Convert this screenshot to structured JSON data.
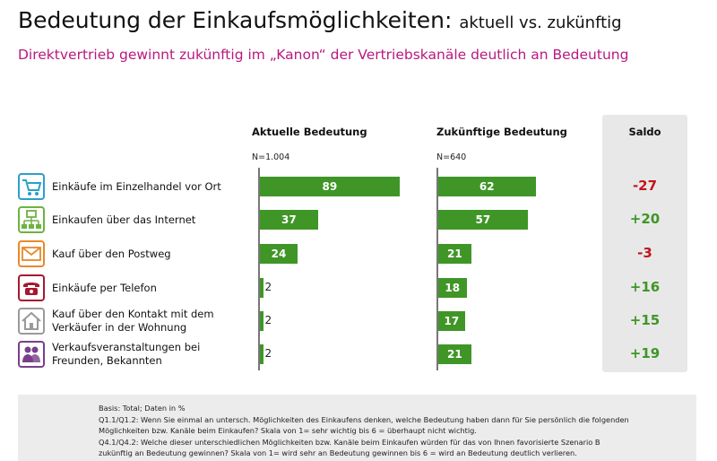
{
  "header": {
    "title": "Bedeutung der Einkaufsmöglichkeiten:",
    "title_suffix": "aktuell vs. zukünftig",
    "subtitle": "Direktvertrieb gewinnt zukünftig im „Kanon“ der Vertriebskanäle deutlich an Bedeutung"
  },
  "columns": {
    "current": "Aktuelle Bedeutung",
    "current_n": "N=1.004",
    "future": "Zukünftige Bedeutung",
    "future_n": "N=640",
    "saldo": "Saldo"
  },
  "chart_data": {
    "type": "bar",
    "categories": [
      "Einkäufe im Einzelhandel vor Ort",
      "Einkaufen über das Internet",
      "Kauf über den Postweg",
      "Einkäufe per Telefon",
      "Kauf über den Kontakt mit dem Verkäufer in der Wohnung",
      "Verkaufsveranstaltungen bei Freunden, Bekannten"
    ],
    "series": [
      {
        "name": "Aktuelle Bedeutung",
        "values": [
          89,
          37,
          24,
          2,
          2,
          2
        ]
      },
      {
        "name": "Zukünftige Bedeutung",
        "values": [
          62,
          57,
          21,
          18,
          17,
          21
        ]
      }
    ],
    "saldo": [
      "-27",
      "+20",
      "-3",
      "+16",
      "+15",
      "+19"
    ],
    "bar_color": "#3f9627",
    "saldo_colors": {
      "negative": "#c0161e",
      "positive": "#3f9627"
    }
  },
  "rows": [
    {
      "label_lines": [
        "Einkäufe im Einzelhandel vor Ort"
      ],
      "icon": "shopping-cart-icon",
      "icon_color": "#2aa0c8"
    },
    {
      "label_lines": [
        "Einkaufen über das Internet"
      ],
      "icon": "network-computer-icon",
      "icon_color": "#6cb33f"
    },
    {
      "label_lines": [
        "Kauf über den Postweg"
      ],
      "icon": "envelope-icon",
      "icon_color": "#e8892a"
    },
    {
      "label_lines": [
        "Einkäufe per Telefon"
      ],
      "icon": "telephone-icon",
      "icon_color": "#a8182d"
    },
    {
      "label_lines": [
        "Kauf über den Kontakt mit dem",
        "Verkäufer in der Wohnung"
      ],
      "icon": "house-icon",
      "icon_color": "#9a9a9a"
    },
    {
      "label_lines": [
        "Verkaufsveranstaltungen bei",
        "Freunden, Bekannten"
      ],
      "icon": "people-icon",
      "icon_color": "#7a3e8c"
    }
  ],
  "footer": {
    "lines": [
      "Basis: Total; Daten in %",
      "Q1.1/Q1.2: Wenn Sie einmal an untersch. Möglichkeiten des Einkaufens denken, welche Bedeutung haben dann für Sie persönlich die folgenden",
      "Möglichkeiten bzw. Kanäle beim Einkaufen? Skala von 1= sehr wichtig bis 6 = überhaupt nicht wichtig.",
      "Q4.1/Q4.2: Welche dieser unterschiedlichen Möglichkeiten bzw. Kanäle beim Einkaufen würden für das von Ihnen favorisierte Szenario B",
      "zukünftig an Bedeutung gewinnen? Skala von 1= wird sehr an Bedeutung gewinnen bis 6 = wird an Bedeutung deutlich verlieren."
    ]
  }
}
